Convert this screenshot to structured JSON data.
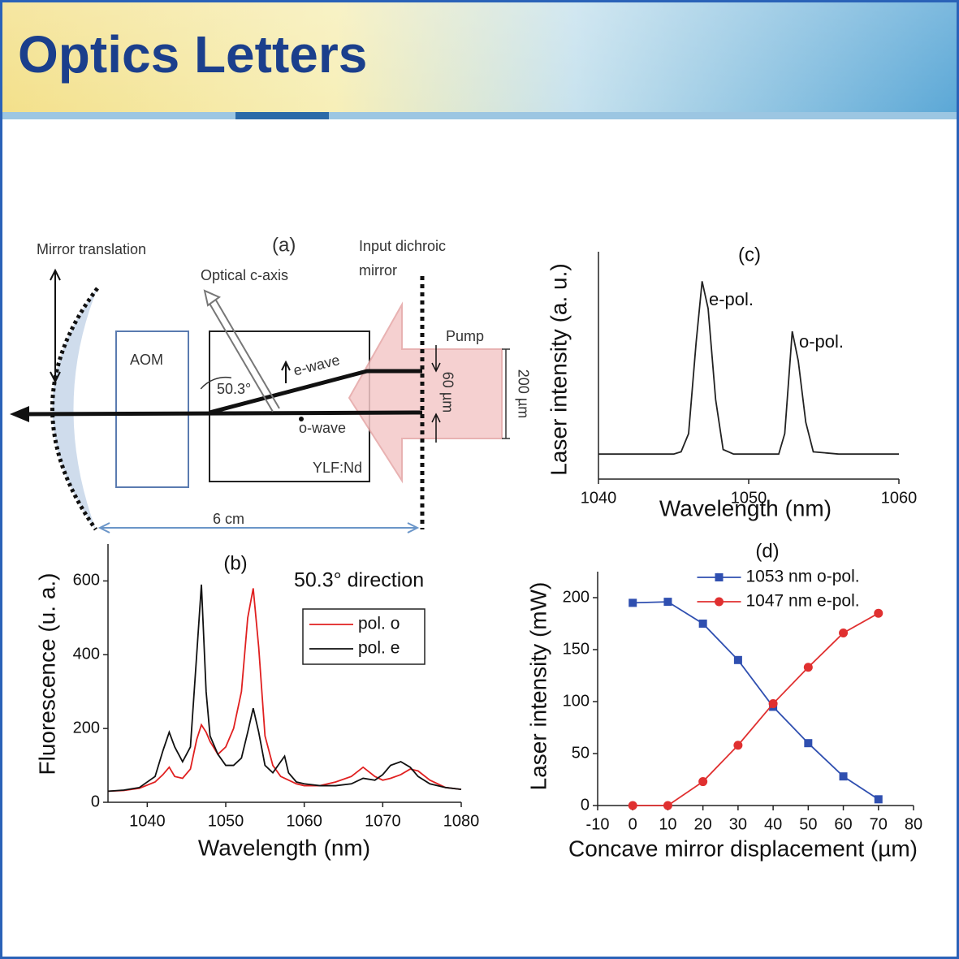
{
  "header": {
    "title": "Optics Letters"
  },
  "diagram": {
    "panel": "(a)",
    "mirror_translation": "Mirror translation",
    "optical_c_axis": "Optical c-axis",
    "input_mirror": [
      "Input dichroic",
      "mirror"
    ],
    "aom": "AOM",
    "angle": "50.3°",
    "e_wave": "e-wave",
    "o_wave": "o-wave",
    "crystal": "YLF:Nd",
    "pump": "Pump",
    "beam_gap": "60 µm",
    "pump_width": "200 µm",
    "cavity_length": "6 cm"
  },
  "chart_data": [
    {
      "type": "line",
      "title": "(b)",
      "annotation": "50.3° direction",
      "x_label": "Wavelength (nm)",
      "y_label": "Fluorescence (u. a.)",
      "x": [
        1035,
        1037,
        1039,
        1041,
        1042,
        1042.8,
        1043.5,
        1044.5,
        1045.5,
        1046.3,
        1046.9,
        1047.5,
        1048,
        1049,
        1050,
        1051,
        1052,
        1052.8,
        1053.5,
        1054.2,
        1055,
        1056,
        1057,
        1057.5,
        1058,
        1059,
        1060,
        1062,
        1064,
        1066,
        1067.5,
        1069,
        1070,
        1071,
        1072.3,
        1073.5,
        1074.5,
        1076,
        1078,
        1080
      ],
      "series": [
        {
          "name": "pol. o",
          "color": "#e02020",
          "values": [
            30,
            32,
            38,
            55,
            75,
            95,
            70,
            65,
            90,
            170,
            210,
            190,
            165,
            130,
            150,
            200,
            300,
            500,
            580,
            420,
            180,
            100,
            70,
            65,
            60,
            50,
            45,
            45,
            55,
            70,
            95,
            70,
            60,
            65,
            75,
            90,
            85,
            60,
            40,
            35
          ]
        },
        {
          "name": "pol. e",
          "color": "#111111",
          "values": [
            30,
            33,
            40,
            70,
            140,
            190,
            150,
            110,
            150,
            400,
            590,
            300,
            180,
            130,
            100,
            100,
            120,
            190,
            255,
            190,
            100,
            80,
            110,
            125,
            80,
            55,
            50,
            45,
            45,
            50,
            65,
            60,
            75,
            100,
            110,
            95,
            70,
            50,
            40,
            35
          ]
        }
      ],
      "xlim": [
        1035,
        1080
      ],
      "xticks": [
        1040,
        1050,
        1060,
        1070,
        1080
      ],
      "ylim": [
        0,
        700
      ],
      "yticks": [
        0,
        200,
        400,
        600
      ],
      "legend": "upper right",
      "legend_frame": true
    },
    {
      "type": "line",
      "title": "(c)",
      "annotations": [
        "e-pol.",
        "o-pol."
      ],
      "x_label": "Wavelength (nm)",
      "y_label": "Laser intensity (a. u.)",
      "x": [
        1040,
        1045,
        1045.5,
        1046,
        1046.5,
        1046.9,
        1047.3,
        1047.8,
        1048.3,
        1049,
        1052,
        1052.4,
        1052.9,
        1053.3,
        1053.8,
        1054.3,
        1056,
        1060
      ],
      "series": [
        {
          "color": "#222222",
          "values": [
            0.11,
            0.11,
            0.12,
            0.2,
            0.6,
            0.87,
            0.75,
            0.35,
            0.13,
            0.11,
            0.11,
            0.2,
            0.65,
            0.52,
            0.25,
            0.12,
            0.11,
            0.11
          ]
        }
      ],
      "xlim": [
        1040,
        1060
      ],
      "xticks": [
        1040,
        1050,
        1060
      ],
      "ylim": [
        0,
        1
      ]
    },
    {
      "type": "line",
      "title": "(d)",
      "x_label": "Concave mirror displacement (µm)",
      "y_label": "Laser intensity (mW)",
      "x": [
        0,
        10,
        20,
        30,
        40,
        50,
        60,
        70
      ],
      "series": [
        {
          "name": "1053 nm o-pol.",
          "color": "#2f4fb0",
          "marker": "square",
          "values": [
            195,
            196,
            175,
            140,
            95,
            60,
            28,
            6
          ]
        },
        {
          "name": "1047 nm e-pol.",
          "color": "#e03030",
          "marker": "circle",
          "values": [
            0,
            0,
            23,
            58,
            98,
            133,
            166,
            185
          ]
        }
      ],
      "xlim": [
        -10,
        80
      ],
      "xticks": [
        -10,
        0,
        10,
        20,
        30,
        40,
        50,
        60,
        70,
        80
      ],
      "ylim": [
        0,
        225
      ],
      "yticks": [
        0,
        50,
        100,
        150,
        200
      ],
      "legend": "upper center",
      "legend_frame": false
    }
  ]
}
